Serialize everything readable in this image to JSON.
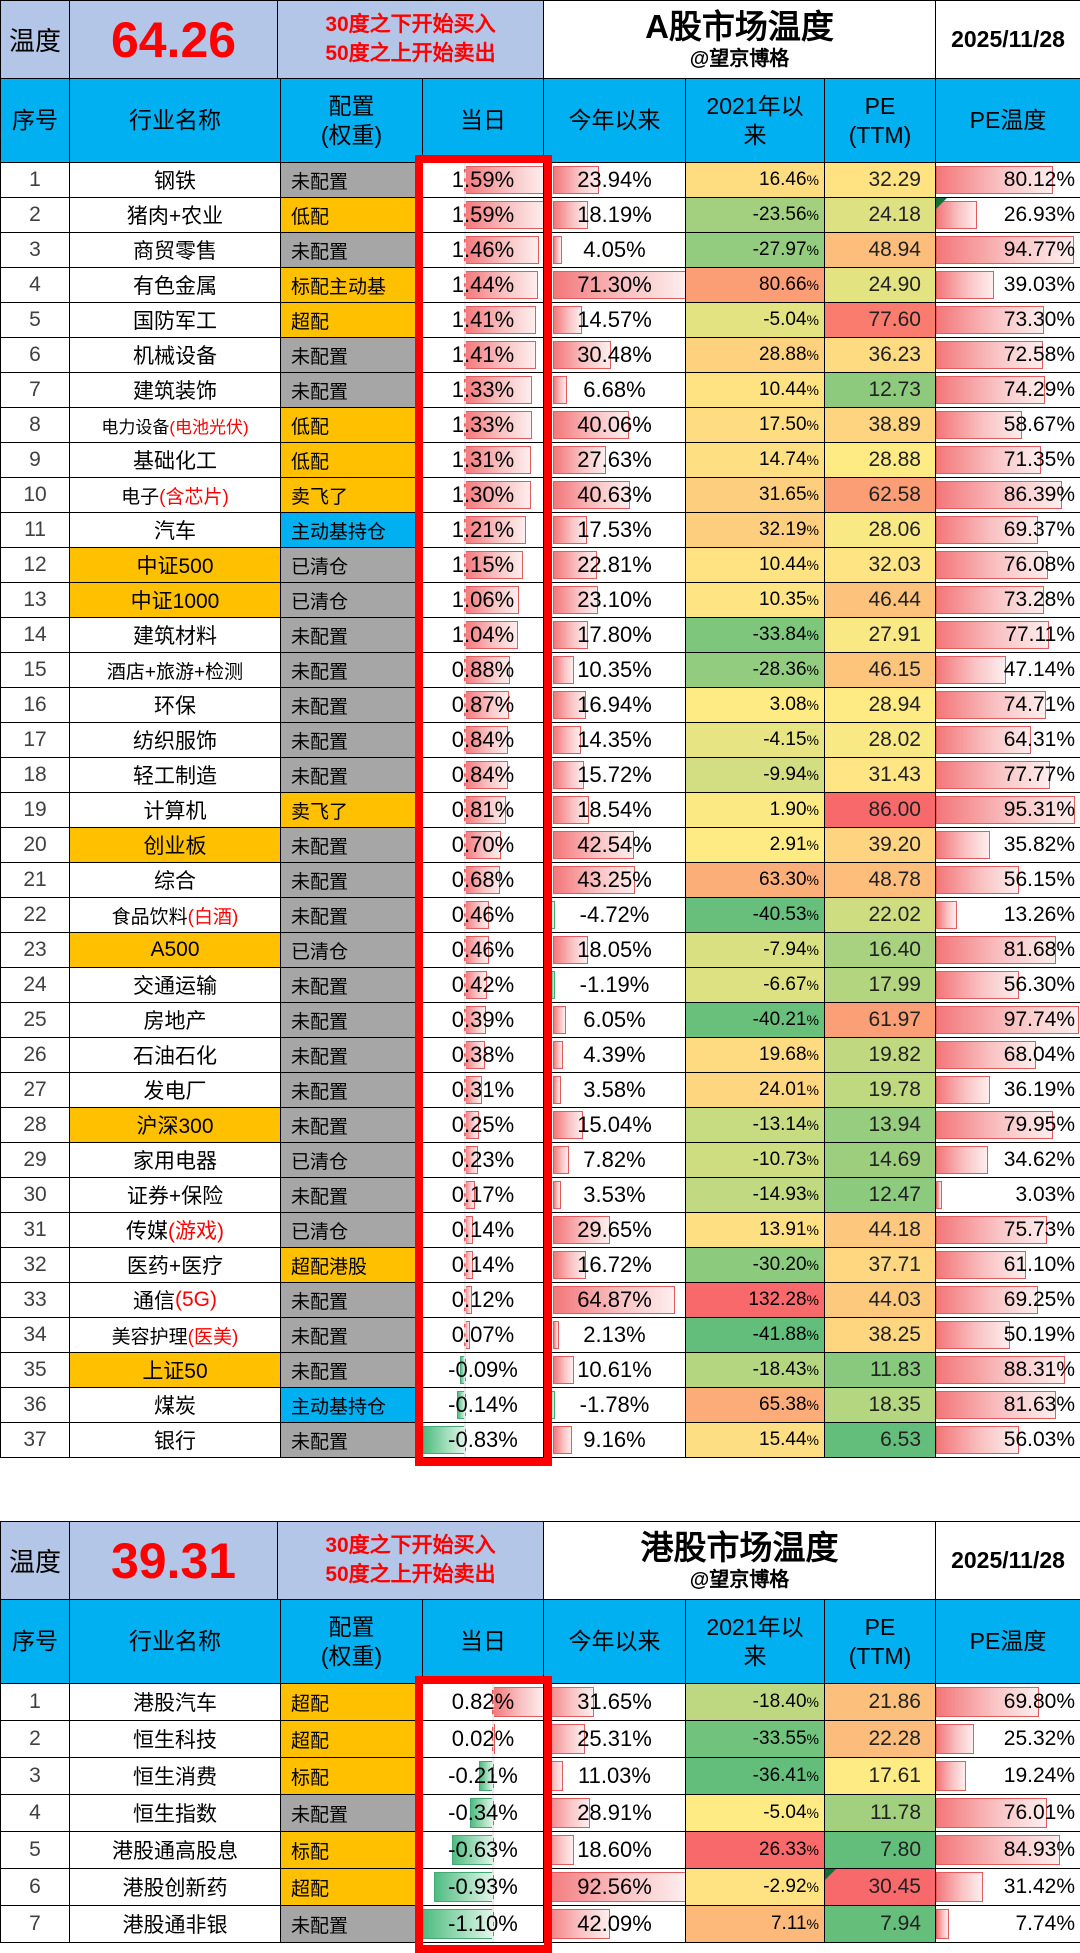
{
  "meta": {
    "temp_label": "温度",
    "date": "2025/11/28",
    "author": "@望京博格",
    "note_line1": "30度之下开始买入",
    "note_line2": "50度之上开始卖出"
  },
  "colors": {
    "header_bg": "#00B0F0",
    "temp_strip_bg": "#B4C6E7",
    "red_text": "#FF0000",
    "config_gray": "#A6A6A6",
    "config_orange": "#FFC000",
    "config_blue": "#00B0F0",
    "industry_highlight": "#FFC000",
    "scale_low_green": "#63BE7B",
    "scale_mid_yellow": "#FFEB84",
    "scale_high_red": "#F8696B",
    "outline_red": "#FE0000"
  },
  "chart_data": [
    {
      "type": "table",
      "title": "A股市场温度",
      "temperature": "64.26",
      "columns": [
        "序号",
        "行业名称",
        "配置\n(权重)",
        "当日",
        "今年以来",
        "2021年以来",
        "PE\n(TTM)",
        "PE温度"
      ],
      "rows": [
        {
          "n": 1,
          "name": "钢铁",
          "cfg": "未配置",
          "cfgc": "gray",
          "d": 1.59,
          "y": 23.94,
          "s": 16.46,
          "pe": 32.29,
          "pt": 80.12
        },
        {
          "n": 2,
          "name": "猪肉+农业",
          "cfg": "低配",
          "cfgc": "orange",
          "d": 1.59,
          "y": 18.19,
          "s": -23.56,
          "pe": 24.18,
          "pt": 26.93,
          "flag": "pt"
        },
        {
          "n": 3,
          "name": "商贸零售",
          "cfg": "未配置",
          "cfgc": "gray",
          "d": 1.46,
          "y": 4.05,
          "s": -27.97,
          "pe": 48.94,
          "pt": 94.77
        },
        {
          "n": 4,
          "name": "有色金属",
          "cfg": "标配主动基",
          "cfgc": "orange",
          "d": 1.44,
          "y": 71.3,
          "s": 80.66,
          "pe": 24.9,
          "pt": 39.03
        },
        {
          "n": 5,
          "name": "国防军工",
          "cfg": "超配",
          "cfgc": "orange",
          "d": 1.41,
          "y": 14.57,
          "s": -5.04,
          "pe": 77.6,
          "pt": 73.3
        },
        {
          "n": 6,
          "name": "机械设备",
          "cfg": "未配置",
          "cfgc": "gray",
          "d": 1.41,
          "y": 30.48,
          "s": 28.88,
          "pe": 36.23,
          "pt": 72.58
        },
        {
          "n": 7,
          "name": "建筑装饰",
          "cfg": "未配置",
          "cfgc": "gray",
          "d": 1.33,
          "y": 6.68,
          "s": 10.44,
          "pe": 12.73,
          "pt": 74.29
        },
        {
          "n": 8,
          "name": "电力设备",
          "red": "(电池光伏)",
          "cfg": "低配",
          "cfgc": "orange",
          "d": 1.33,
          "y": 40.06,
          "s": 17.5,
          "pe": 38.89,
          "pt": 58.67
        },
        {
          "n": 9,
          "name": "基础化工",
          "cfg": "低配",
          "cfgc": "orange",
          "d": 1.31,
          "y": 27.63,
          "s": 14.74,
          "pe": 28.88,
          "pt": 71.35
        },
        {
          "n": 10,
          "name": "电子",
          "red": "(含芯片)",
          "cfg": "卖飞了",
          "cfgc": "orange",
          "d": 1.3,
          "y": 40.63,
          "s": 31.65,
          "pe": 62.58,
          "pt": 86.39
        },
        {
          "n": 11,
          "name": "汽车",
          "cfg": "主动基持仓",
          "cfgc": "blue",
          "d": 1.21,
          "y": 17.53,
          "s": 32.19,
          "pe": 28.06,
          "pt": 69.37
        },
        {
          "n": 12,
          "name": "中证500",
          "hl": true,
          "cfg": "已清仓",
          "cfgc": "gray",
          "d": 1.15,
          "y": 22.81,
          "s": 10.44,
          "pe": 32.03,
          "pt": 76.08
        },
        {
          "n": 13,
          "name": "中证1000",
          "hl": true,
          "cfg": "已清仓",
          "cfgc": "gray",
          "d": 1.06,
          "y": 23.1,
          "s": 10.35,
          "pe": 46.44,
          "pt": 73.28
        },
        {
          "n": 14,
          "name": "建筑材料",
          "cfg": "未配置",
          "cfgc": "gray",
          "d": 1.04,
          "y": 17.8,
          "s": -33.84,
          "pe": 27.91,
          "pt": 77.11
        },
        {
          "n": 15,
          "name": "酒店+旅游+检测",
          "cfg": "未配置",
          "cfgc": "gray",
          "d": 0.88,
          "y": 10.35,
          "s": -28.36,
          "pe": 46.15,
          "pt": 47.14
        },
        {
          "n": 16,
          "name": "环保",
          "cfg": "未配置",
          "cfgc": "gray",
          "d": 0.87,
          "y": 16.94,
          "s": 3.08,
          "pe": 28.94,
          "pt": 74.71
        },
        {
          "n": 17,
          "name": "纺织服饰",
          "cfg": "未配置",
          "cfgc": "gray",
          "d": 0.84,
          "y": 14.35,
          "s": -4.15,
          "pe": 28.02,
          "pt": 64.31
        },
        {
          "n": 18,
          "name": "轻工制造",
          "cfg": "未配置",
          "cfgc": "gray",
          "d": 0.84,
          "y": 15.72,
          "s": -9.94,
          "pe": 31.43,
          "pt": 77.77
        },
        {
          "n": 19,
          "name": "计算机",
          "cfg": "卖飞了",
          "cfgc": "orange",
          "d": 0.81,
          "y": 18.54,
          "s": 1.9,
          "pe": 86.0,
          "pt": 95.31
        },
        {
          "n": 20,
          "name": "创业板",
          "hl": true,
          "cfg": "未配置",
          "cfgc": "gray",
          "d": 0.7,
          "y": 42.54,
          "s": 2.91,
          "pe": 39.2,
          "pt": 35.82
        },
        {
          "n": 21,
          "name": "综合",
          "cfg": "未配置",
          "cfgc": "gray",
          "d": 0.68,
          "y": 43.25,
          "s": 63.3,
          "pe": 48.78,
          "pt": 56.15
        },
        {
          "n": 22,
          "name": "食品饮料",
          "red": "(白酒)",
          "cfg": "未配置",
          "cfgc": "gray",
          "d": 0.46,
          "y": -4.72,
          "s": -40.53,
          "pe": 22.02,
          "pt": 13.26
        },
        {
          "n": 23,
          "name": "A500",
          "hl": true,
          "cfg": "已清仓",
          "cfgc": "gray",
          "d": 0.46,
          "y": 18.05,
          "s": -7.94,
          "pe": 16.4,
          "pt": 81.68
        },
        {
          "n": 24,
          "name": "交通运输",
          "cfg": "未配置",
          "cfgc": "gray",
          "d": 0.42,
          "y": -1.19,
          "s": -6.67,
          "pe": 17.99,
          "pt": 56.3
        },
        {
          "n": 25,
          "name": "房地产",
          "cfg": "未配置",
          "cfgc": "gray",
          "d": 0.39,
          "y": 6.05,
          "s": -40.21,
          "pe": 61.97,
          "pt": 97.74
        },
        {
          "n": 26,
          "name": "石油石化",
          "cfg": "未配置",
          "cfgc": "gray",
          "d": 0.38,
          "y": 4.39,
          "s": 19.68,
          "pe": 19.82,
          "pt": 68.04
        },
        {
          "n": 27,
          "name": "发电厂",
          "cfg": "未配置",
          "cfgc": "gray",
          "d": 0.31,
          "y": 3.58,
          "s": 24.01,
          "pe": 19.78,
          "pt": 36.19
        },
        {
          "n": 28,
          "name": "沪深300",
          "hl": true,
          "cfg": "未配置",
          "cfgc": "gray",
          "d": 0.25,
          "y": 15.04,
          "s": -13.14,
          "pe": 13.94,
          "pt": 79.95
        },
        {
          "n": 29,
          "name": "家用电器",
          "cfg": "已清仓",
          "cfgc": "gray",
          "d": 0.23,
          "y": 7.82,
          "s": -10.73,
          "pe": 14.69,
          "pt": 34.62
        },
        {
          "n": 30,
          "name": "证券+保险",
          "cfg": "未配置",
          "cfgc": "gray",
          "d": 0.17,
          "y": 3.53,
          "s": -14.93,
          "pe": 12.47,
          "pt": 3.03
        },
        {
          "n": 31,
          "name": "传媒",
          "red": "(游戏)",
          "cfg": "已清仓",
          "cfgc": "gray",
          "d": 0.14,
          "y": 29.65,
          "s": 13.91,
          "pe": 44.18,
          "pt": 75.73
        },
        {
          "n": 32,
          "name": "医药+医疗",
          "cfg": "超配港股",
          "cfgc": "orange",
          "d": 0.14,
          "y": 16.72,
          "s": -30.2,
          "pe": 37.71,
          "pt": 61.1
        },
        {
          "n": 33,
          "name": "通信",
          "red": "(5G)",
          "cfg": "未配置",
          "cfgc": "gray",
          "d": 0.12,
          "y": 64.87,
          "s": 132.28,
          "pe": 44.03,
          "pt": 69.25
        },
        {
          "n": 34,
          "name": "美容护理",
          "red": "(医美)",
          "cfg": "未配置",
          "cfgc": "gray",
          "d": 0.07,
          "y": 2.13,
          "s": -41.88,
          "pe": 38.25,
          "pt": 50.19
        },
        {
          "n": 35,
          "name": "上证50",
          "hl": true,
          "cfg": "未配置",
          "cfgc": "gray",
          "d": -0.09,
          "y": 10.61,
          "s": -18.43,
          "pe": 11.83,
          "pt": 88.31
        },
        {
          "n": 36,
          "name": "煤炭",
          "cfg": "主动基持仓",
          "cfgc": "blue",
          "d": -0.14,
          "y": -1.78,
          "s": 65.38,
          "pe": 18.35,
          "pt": 81.63
        },
        {
          "n": 37,
          "name": "银行",
          "cfg": "未配置",
          "cfgc": "gray",
          "d": -0.83,
          "y": 9.16,
          "s": 15.44,
          "pe": 6.53,
          "pt": 56.03
        }
      ]
    },
    {
      "type": "table",
      "title": "港股市场温度",
      "temperature": "39.31",
      "columns": [
        "序号",
        "行业名称",
        "配置\n(权重)",
        "当日",
        "今年以来",
        "2021年以来",
        "PE\n(TTM)",
        "PE温度"
      ],
      "rows": [
        {
          "n": 1,
          "name": "港股汽车",
          "cfg": "超配",
          "cfgc": "orange",
          "d": 0.82,
          "y": 31.65,
          "s": -18.4,
          "pe": 21.86,
          "pt": 69.8
        },
        {
          "n": 2,
          "name": "恒生科技",
          "cfg": "超配",
          "cfgc": "orange",
          "d": 0.02,
          "y": 25.31,
          "s": -33.55,
          "pe": 22.28,
          "pt": 25.32
        },
        {
          "n": 3,
          "name": "恒生消费",
          "cfg": "标配",
          "cfgc": "orange",
          "d": -0.21,
          "y": 11.03,
          "s": -36.41,
          "pe": 17.61,
          "pt": 19.24
        },
        {
          "n": 4,
          "name": "恒生指数",
          "cfg": "未配置",
          "cfgc": "gray",
          "d": -0.34,
          "y": 28.91,
          "s": -5.04,
          "pe": 11.78,
          "pt": 76.01
        },
        {
          "n": 5,
          "name": "港股通高股息",
          "cfg": "标配",
          "cfgc": "orange",
          "d": -0.63,
          "y": 18.6,
          "s": 26.33,
          "pe": 7.8,
          "pt": 84.93
        },
        {
          "n": 6,
          "name": "港股创新药",
          "cfg": "超配",
          "cfgc": "orange",
          "d": -0.93,
          "y": 92.56,
          "s": -2.92,
          "pe": 30.45,
          "pt": 31.42,
          "flag": "pe"
        },
        {
          "n": 7,
          "name": "港股通非银",
          "cfg": "未配置",
          "cfgc": "gray",
          "d": -1.1,
          "y": 42.09,
          "s": 7.11,
          "pe": 7.94,
          "pt": 7.74
        }
      ]
    }
  ]
}
